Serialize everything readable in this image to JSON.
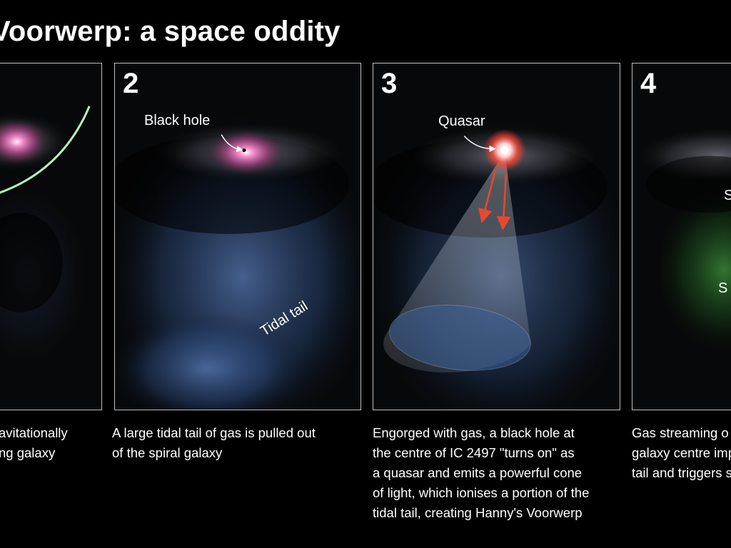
{
  "title": "Voorwerp: a space oddity",
  "panels": [
    {
      "caption_lines": [
        "avitationally",
        "ng galaxy"
      ]
    },
    {
      "number": "2",
      "labels": {
        "black_hole": "Black hole",
        "tidal_tail": "Tidal tail"
      },
      "caption_lines": [
        "A large tidal tail of gas is pulled out",
        "of the spiral galaxy"
      ]
    },
    {
      "number": "3",
      "labels": {
        "quasar": "Quasar"
      },
      "caption_lines": [
        "Engorged with gas, a black hole at",
        "the centre of IC 2497 \"turns on\" as",
        "a quasar and emits a powerful cone",
        "of light, which ionises a portion of the",
        "tidal tail, creating Hanny's Voorwerp"
      ]
    },
    {
      "number": "4",
      "labels": {
        "partial_1": "S",
        "partial_2": "S"
      },
      "caption_lines": [
        "Gas streaming o",
        "galaxy centre imp",
        "tail and triggers s"
      ]
    }
  ],
  "colors": {
    "background": "#000000",
    "panel_border": "#bdbdbd",
    "arc": "#b7f0bf",
    "arrow": "#e8482e",
    "star_forming": "#4fbf4a"
  }
}
